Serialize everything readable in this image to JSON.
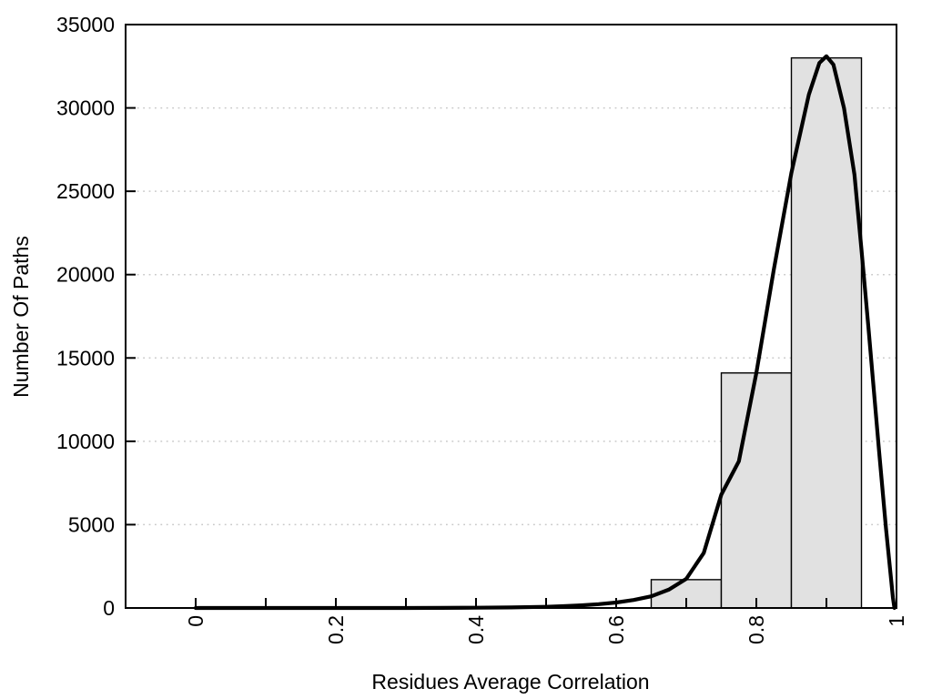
{
  "chart_data": {
    "type": "bar",
    "subtype": "histogram-with-fitted-curve",
    "title": "",
    "xlabel": "Residues Average Correlation",
    "ylabel": "Number Of Paths",
    "xlim": [
      -0.1,
      1.0
    ],
    "ylim": [
      0,
      35000
    ],
    "legend": "none",
    "grid": {
      "horizontal": true,
      "vertical": false,
      "style": "dotted"
    },
    "x_ticks": [
      {
        "value": 0,
        "label": "0"
      },
      {
        "value": 0.1,
        "label": ""
      },
      {
        "value": 0.2,
        "label": "0.2"
      },
      {
        "value": 0.3,
        "label": ""
      },
      {
        "value": 0.4,
        "label": "0.4"
      },
      {
        "value": 0.5,
        "label": ""
      },
      {
        "value": 0.6,
        "label": "0.6"
      },
      {
        "value": 0.7,
        "label": ""
      },
      {
        "value": 0.8,
        "label": "0.8"
      },
      {
        "value": 0.9,
        "label": ""
      },
      {
        "value": 1,
        "label": "1"
      }
    ],
    "y_ticks": [
      {
        "value": 0,
        "label": "0",
        "grid": false
      },
      {
        "value": 5000,
        "label": "5000",
        "grid": true
      },
      {
        "value": 10000,
        "label": "10000",
        "grid": true
      },
      {
        "value": 15000,
        "label": "15000",
        "grid": true
      },
      {
        "value": 20000,
        "label": "20000",
        "grid": true
      },
      {
        "value": 25000,
        "label": "25000",
        "grid": true
      },
      {
        "value": 30000,
        "label": "30000",
        "grid": true
      },
      {
        "value": 35000,
        "label": "35000",
        "grid": false
      }
    ],
    "bars": [
      {
        "x_start": 0.65,
        "x_end": 0.75,
        "value": 1700
      },
      {
        "x_start": 0.75,
        "x_end": 0.85,
        "value": 14100
      },
      {
        "x_start": 0.85,
        "x_end": 0.95,
        "value": 33000
      }
    ],
    "curve": {
      "name": "fitted-distribution-curve",
      "peak": {
        "x": 0.9,
        "y": 33100
      },
      "points": [
        [
          0,
          0
        ],
        [
          0.05,
          0
        ],
        [
          0.1,
          0
        ],
        [
          0.15,
          0
        ],
        [
          0.2,
          0
        ],
        [
          0.25,
          0
        ],
        [
          0.3,
          0
        ],
        [
          0.35,
          5
        ],
        [
          0.4,
          15
        ],
        [
          0.45,
          35
        ],
        [
          0.5,
          70
        ],
        [
          0.525,
          110
        ],
        [
          0.55,
          160
        ],
        [
          0.575,
          230
        ],
        [
          0.6,
          330
        ],
        [
          0.625,
          480
        ],
        [
          0.65,
          700
        ],
        [
          0.675,
          1100
        ],
        [
          0.7,
          1750
        ],
        [
          0.725,
          3300
        ],
        [
          0.75,
          6800
        ],
        [
          0.775,
          8800
        ],
        [
          0.8,
          14100
        ],
        [
          0.825,
          20300
        ],
        [
          0.85,
          26100
        ],
        [
          0.875,
          30800
        ],
        [
          0.89,
          32700
        ],
        [
          0.9,
          33100
        ],
        [
          0.91,
          32600
        ],
        [
          0.925,
          30000
        ],
        [
          0.94,
          26000
        ],
        [
          0.95,
          21500
        ],
        [
          0.96,
          16800
        ],
        [
          0.975,
          9500
        ],
        [
          0.985,
          4800
        ],
        [
          0.995,
          600
        ],
        [
          0.997,
          0
        ]
      ]
    },
    "colors": {
      "background": "#ffffff",
      "bar_fill": "#e1e1e1",
      "bar_border": "#000000",
      "curve": "#000000",
      "grid_line": "#c9c9c9",
      "axis": "#000000",
      "text": "#000000"
    }
  }
}
